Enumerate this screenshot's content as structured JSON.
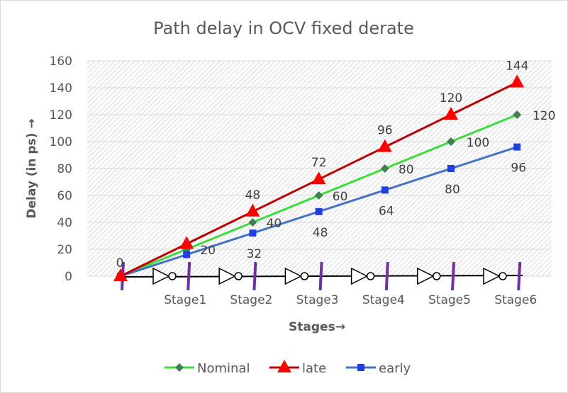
{
  "chart_data": {
    "type": "line",
    "title": "Path delay in OCV fixed derate",
    "xlabel": "Stages→",
    "ylabel": "Delay (in ps) →",
    "categories": [
      "",
      "Stage1",
      "Stage2",
      "Stage3",
      "Stage4",
      "Stage5",
      "Stage6"
    ],
    "ylim": [
      0,
      160
    ],
    "yticks": [
      "0",
      "20",
      "40",
      "60",
      "80",
      "100",
      "120",
      "140",
      "160"
    ],
    "grid": true,
    "legend_position": "bottom",
    "series": [
      {
        "name": "Nominal",
        "values": [
          0,
          20,
          40,
          60,
          80,
          100,
          120
        ],
        "color": "#3ddc3d",
        "marker": "diamond",
        "marker_color": "#3f7f4f",
        "labels": [
          "",
          "20",
          "40",
          "60",
          "80",
          "100",
          "120"
        ]
      },
      {
        "name": "late",
        "values": [
          0,
          24,
          48,
          72,
          96,
          120,
          144
        ],
        "color": "#c00000",
        "marker": "triangle",
        "marker_color": "#ff0000",
        "labels": [
          "0",
          "",
          "48",
          "72",
          "96",
          "120",
          "144"
        ]
      },
      {
        "name": "early",
        "values": [
          0,
          16,
          32,
          48,
          64,
          80,
          96
        ],
        "color": "#4472c4",
        "marker": "square",
        "marker_color": "#1f3fe0",
        "labels": [
          "",
          "",
          "32",
          "48",
          "64",
          "80",
          "96"
        ]
      }
    ],
    "stage_marker_color": "#7030a0",
    "plot_background": "#e6e6e6"
  }
}
